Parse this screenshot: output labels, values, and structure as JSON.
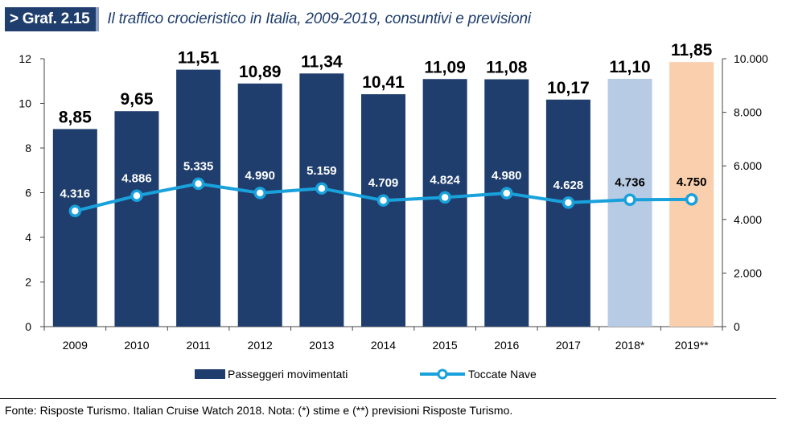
{
  "header": {
    "tag": "> Graf. 2.15",
    "title": "Il traffico crocieristico in Italia, 2009-2019, consuntivi e previsioni"
  },
  "footer": {
    "source": "Fonte: Risposte Turismo. Italian Cruise Watch 2018. Nota: (*) stime e (**) previsioni Risposte Turismo."
  },
  "colors": {
    "bar": "#1f3e6d",
    "bar_estimate": "#b8cbe4",
    "bar_forecast": "#f9cfae",
    "line": "#19a1dc",
    "title": "#1f3e6d"
  },
  "chart_data": {
    "type": "bar",
    "categories": [
      "2009",
      "2010",
      "2011",
      "2012",
      "2013",
      "2014",
      "2015",
      "2016",
      "2017",
      "2018*",
      "2019**"
    ],
    "series": [
      {
        "name": "Passeggeri movimentati",
        "type": "bar",
        "axis": "left",
        "values": [
          8.85,
          9.65,
          11.51,
          10.89,
          11.34,
          10.41,
          11.09,
          11.08,
          10.17,
          11.1,
          11.85
        ],
        "labels": [
          "8,85",
          "9,65",
          "11,51",
          "10,89",
          "11,34",
          "10,41",
          "11,09",
          "11,08",
          "10,17",
          "11,10",
          "11,85"
        ]
      },
      {
        "name": "Toccate Nave",
        "type": "line",
        "axis": "right",
        "values": [
          4316,
          4886,
          5335,
          4990,
          5159,
          4709,
          4824,
          4980,
          4628,
          4736,
          4750
        ],
        "labels": [
          "4.316",
          "4.886",
          "5.335",
          "4.990",
          "5.159",
          "4.709",
          "4.824",
          "4.980",
          "4.628",
          "4.736",
          "4.750"
        ]
      }
    ],
    "y_left": {
      "ylim": [
        0,
        12
      ],
      "ticks": [
        "0",
        "2",
        "4",
        "6",
        "8",
        "10",
        "12"
      ]
    },
    "y_right": {
      "ylim": [
        0,
        10000
      ],
      "ticks": [
        "0",
        "2.000",
        "4.000",
        "6.000",
        "8.000",
        "10.000"
      ]
    },
    "legend": [
      "Passeggeri movimentati",
      "Toccate Nave"
    ],
    "legend_position": "bottom",
    "grid": false
  }
}
